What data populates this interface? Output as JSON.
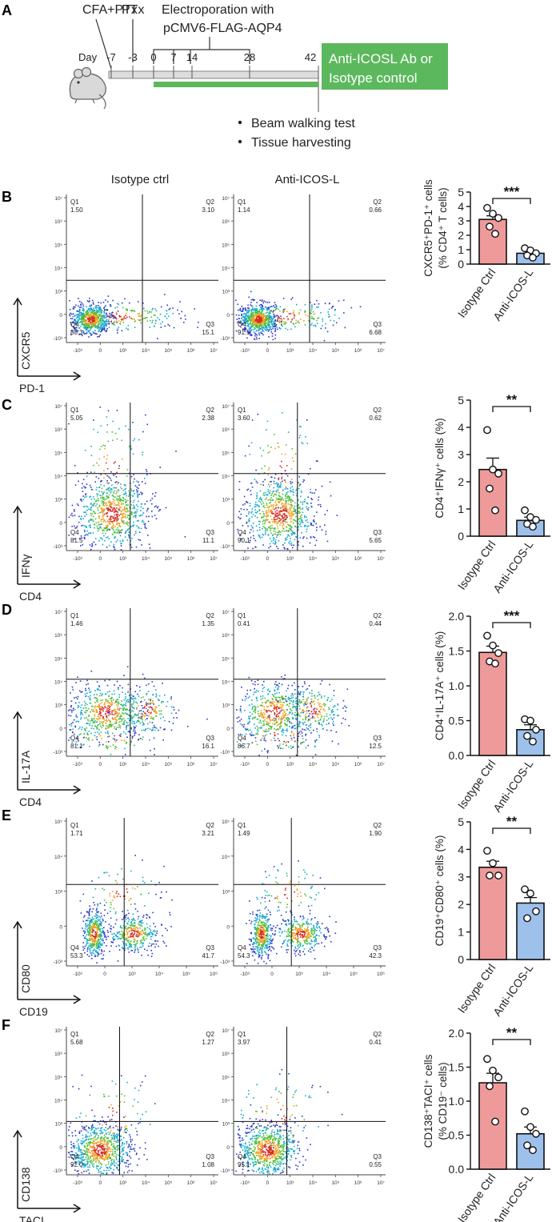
{
  "panel_letters": [
    "A",
    "B",
    "C",
    "D",
    "E",
    "F"
  ],
  "timeline": {
    "labels": {
      "cfa": "CFA+PTx",
      "ptx": "PTx",
      "electro_1": "Electroporation with",
      "electro_2": "pCMV6-FLAG-AQP4",
      "day": "Day"
    },
    "days": [
      "-7",
      "-3",
      "0",
      "7",
      "14",
      "28",
      "42"
    ],
    "treatment_box": [
      "Anti-ICOSL Ab or",
      "Isotype control"
    ],
    "bullets": [
      "Beam walking test",
      "Tissue harvesting"
    ],
    "colors": {
      "green": "#5cb85c",
      "track": "#dddddd"
    }
  },
  "column_headers": [
    "Isotype ctrl",
    "Anti-ICOS-L"
  ],
  "flow_panels": [
    {
      "y_marker": "CXCR5",
      "x_marker": "PD-1",
      "plots": [
        {
          "quadrants": {
            "Q1": "1.50",
            "Q2": "3.10",
            "Q3": "15.1",
            "Q4": "80.3"
          }
        },
        {
          "quadrants": {
            "Q1": "1.14",
            "Q2": "0.66",
            "Q3": "6.68",
            "Q4": "91.5"
          }
        }
      ],
      "y_ticks": [
        "10⁷",
        "10⁶",
        "10⁵",
        "10⁴",
        "10³",
        "0",
        "-10³"
      ],
      "x_ticks": [
        "-10³",
        "0",
        "10³",
        "10⁴",
        "10⁵",
        "10⁶",
        "10⁷"
      ]
    },
    {
      "y_marker": "IFNγ",
      "x_marker": "CD4",
      "plots": [
        {
          "quadrants": {
            "Q1": "5.05",
            "Q2": "2.38",
            "Q3": "11.1",
            "Q4": "81.5"
          }
        },
        {
          "quadrants": {
            "Q1": "3.60",
            "Q2": "0.62",
            "Q3": "5.65",
            "Q4": "90.1"
          }
        }
      ],
      "y_ticks": [
        "10⁷",
        "10⁶",
        "10⁵",
        "10⁴",
        "10³",
        "0",
        "-10³"
      ],
      "x_ticks": [
        "-10³",
        "0",
        "10³",
        "10⁴",
        "10⁵",
        "10⁶",
        "10⁷"
      ]
    },
    {
      "y_marker": "IL-17A",
      "x_marker": "CD4",
      "plots": [
        {
          "quadrants": {
            "Q1": "1.46",
            "Q2": "1.35",
            "Q3": "16.1",
            "Q4": "81.1"
          }
        },
        {
          "quadrants": {
            "Q1": "0.41",
            "Q2": "0.44",
            "Q3": "12.5",
            "Q4": "86.7"
          }
        }
      ],
      "y_ticks": [
        "10⁷",
        "10⁶",
        "10⁵",
        "10⁴",
        "10³",
        "0",
        "-10³"
      ],
      "x_ticks": [
        "-10³",
        "0",
        "10³",
        "10⁴",
        "10⁵",
        "10⁶",
        "10⁷"
      ]
    },
    {
      "y_marker": "CD80",
      "x_marker": "CD19",
      "plots": [
        {
          "quadrants": {
            "Q1": "1.71",
            "Q2": "3.21",
            "Q3": "41.7",
            "Q4": "53.3"
          }
        },
        {
          "quadrants": {
            "Q1": "1.49",
            "Q2": "1.90",
            "Q3": "42.3",
            "Q4": "54.3"
          }
        }
      ],
      "y_ticks": [
        "10⁵",
        "10⁴",
        "10³",
        "0",
        "-10³"
      ],
      "x_ticks": [
        "-10³",
        "0",
        "10³",
        "10⁴",
        "10⁵",
        "10⁶"
      ]
    },
    {
      "y_marker": "CD138",
      "x_marker": "TACI",
      "plots": [
        {
          "quadrants": {
            "Q1": "5.68",
            "Q2": "1.27",
            "Q3": "1.08",
            "Q4": "92.0"
          }
        },
        {
          "quadrants": {
            "Q1": "3.97",
            "Q2": "0.41",
            "Q3": "0.55",
            "Q4": "95.1"
          }
        }
      ],
      "y_ticks": [
        "10⁷",
        "10⁶",
        "10⁵",
        "10⁴",
        "10³",
        "0",
        "-10³"
      ],
      "x_ticks": [
        "-10³",
        "0",
        "10³",
        "10⁴",
        "10⁵",
        "10⁶",
        "10⁷"
      ]
    }
  ],
  "chart_data": [
    {
      "type": "bar",
      "panel": "B",
      "categories": [
        "Isotype Ctrl",
        "Anti-ICOS-L"
      ],
      "ylabel_lines": [
        "CXCR5⁺PD-1⁺ cells",
        "(% CD4⁺ T cells)"
      ],
      "ylim": [
        0,
        5
      ],
      "yticks": [
        0,
        1,
        2,
        3,
        4,
        5
      ],
      "ytick_labels": [
        "0",
        "1",
        "2",
        "3",
        "4",
        "5"
      ],
      "values": [
        3.1,
        0.75
      ],
      "errors": [
        0.25,
        0.12
      ],
      "points": [
        [
          3.9,
          3.5,
          3.2,
          2.6,
          2.1
        ],
        [
          1.1,
          0.95,
          0.75,
          0.6,
          0.45
        ]
      ],
      "significance": "***",
      "colors": [
        "#ef9a9a",
        "#9ec1ec"
      ]
    },
    {
      "type": "bar",
      "panel": "C",
      "categories": [
        "Isotype Ctrl",
        "Anti-ICOS-L"
      ],
      "ylabel_lines": [
        "CD4⁺IFNγ⁺ cells (%)"
      ],
      "ylim": [
        0,
        5
      ],
      "yticks": [
        0,
        1,
        2,
        3,
        4,
        5
      ],
      "ytick_labels": [
        "0",
        "1",
        "2",
        "3",
        "4",
        "5"
      ],
      "values": [
        2.45,
        0.58
      ],
      "errors": [
        0.42,
        0.12
      ],
      "points": [
        [
          3.9,
          2.45,
          2.3,
          1.75,
          0.95
        ],
        [
          0.95,
          0.7,
          0.6,
          0.45,
          0.35
        ]
      ],
      "significance": "**",
      "colors": [
        "#ef9a9a",
        "#9ec1ec"
      ]
    },
    {
      "type": "bar",
      "panel": "D",
      "categories": [
        "Isotype Ctrl",
        "Anti-ICOS-L"
      ],
      "ylabel_lines": [
        "CD4⁺IL-17A⁺ cells (%)"
      ],
      "ylim": [
        0,
        2
      ],
      "yticks": [
        0,
        0.5,
        1,
        1.5,
        2
      ],
      "ytick_labels": [
        "0.0",
        "0.5",
        "1.0",
        "1.5",
        "2.0"
      ],
      "values": [
        1.48,
        0.37
      ],
      "errors": [
        0.09,
        0.07
      ],
      "points": [
        [
          1.72,
          1.58,
          1.47,
          1.35,
          1.32
        ],
        [
          0.52,
          0.5,
          0.37,
          0.28,
          0.2
        ]
      ],
      "significance": "***",
      "colors": [
        "#ef9a9a",
        "#9ec1ec"
      ]
    },
    {
      "type": "bar",
      "panel": "E",
      "categories": [
        "Isotype Ctrl",
        "Anti-ICOS-L"
      ],
      "ylabel_lines": [
        "CD19⁺CD80⁺ cells (%)"
      ],
      "ylim": [
        0,
        5
      ],
      "yticks": [
        0,
        1,
        2,
        3,
        4,
        5
      ],
      "ytick_labels": [
        "0",
        "1",
        "2",
        "3",
        "4",
        "5"
      ],
      "values": [
        3.35,
        2.05
      ],
      "errors": [
        0.22,
        0.2
      ],
      "points": [
        [
          3.95,
          3.5,
          3.05,
          3.05
        ],
        [
          2.55,
          2.4,
          1.75,
          1.5
        ]
      ],
      "significance": "**",
      "colors": [
        "#ef9a9a",
        "#9ec1ec"
      ]
    },
    {
      "type": "bar",
      "panel": "F",
      "categories": [
        "Isotype Ctrl",
        "Anti-ICOS-L"
      ],
      "ylabel_lines": [
        "CD138⁺TACI⁺ cells",
        "(% CD19⁻ cells)"
      ],
      "ylim": [
        0,
        2
      ],
      "yticks": [
        0,
        0.5,
        1,
        1.5,
        2
      ],
      "ytick_labels": [
        "0.0",
        "0.5",
        "1.0",
        "1.5",
        "2.0"
      ],
      "values": [
        1.27,
        0.52
      ],
      "errors": [
        0.14,
        0.1
      ],
      "points": [
        [
          1.62,
          1.45,
          1.35,
          1.22,
          0.7
        ],
        [
          0.85,
          0.62,
          0.52,
          0.35,
          0.28
        ]
      ],
      "significance": "**",
      "colors": [
        "#ef9a9a",
        "#9ec1ec"
      ]
    }
  ]
}
